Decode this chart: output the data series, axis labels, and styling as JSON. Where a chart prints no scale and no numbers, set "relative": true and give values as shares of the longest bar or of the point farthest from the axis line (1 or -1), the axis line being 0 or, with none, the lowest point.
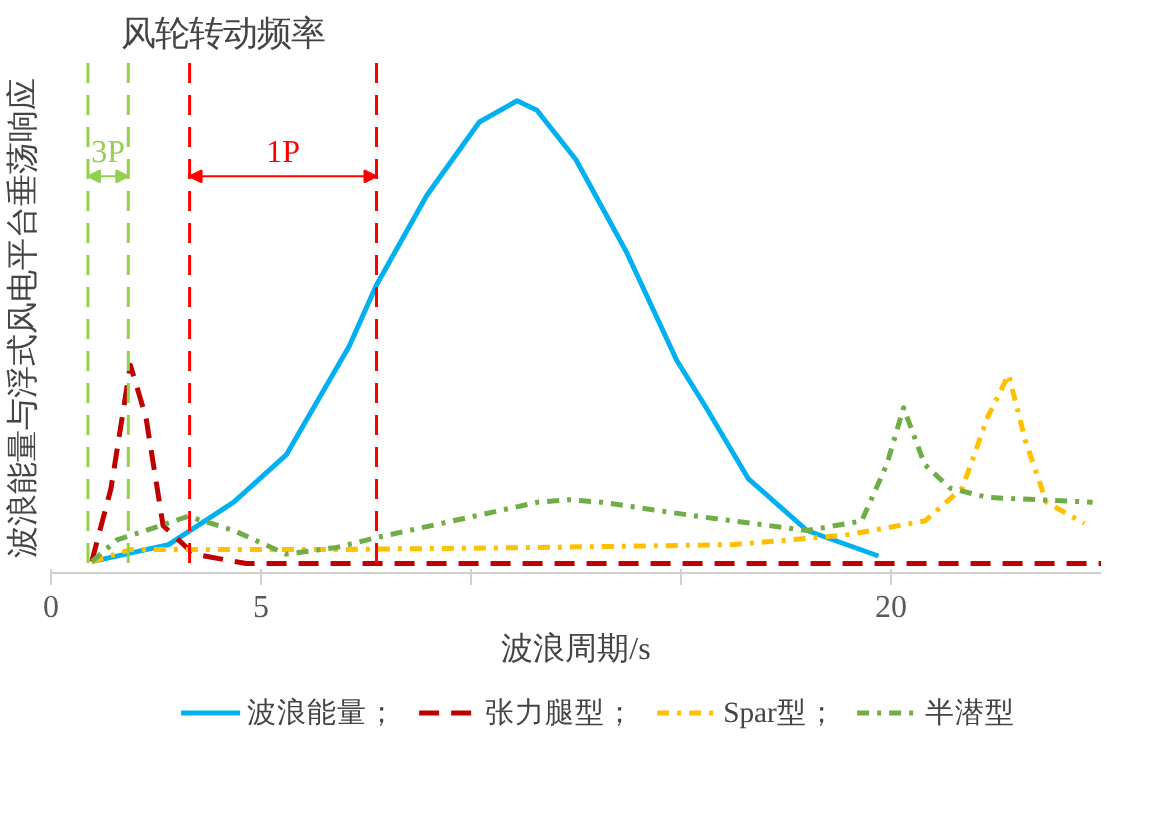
{
  "chart_data": {
    "type": "line",
    "title": "风轮转动频率",
    "xlabel": "波浪周期/s",
    "ylabel": "波浪能量与浮式风电平台垂荡响应",
    "relative": true,
    "xlim": [
      0,
      25
    ],
    "xticks": [
      0,
      5,
      {
        "value": 10,
        "label": null
      },
      {
        "value": 15,
        "label": null
      },
      20
    ],
    "grid": false,
    "legend": "bottom",
    "series": [
      {
        "name": "波浪能量；",
        "color": "#00b0f0",
        "line_style": "solid",
        "x": [
          0.97,
          2.8,
          4.35,
          5.6,
          7.1,
          7.75,
          8.95,
          10.2,
          11.1,
          11.57,
          12.5,
          13.7,
          14.9,
          15.6,
          16.6,
          18.0,
          19.7
        ],
        "values": [
          0.024,
          0.06,
          0.15,
          0.25,
          0.48,
          0.61,
          0.8,
          0.955,
          1,
          0.98,
          0.875,
          0.68,
          0.45,
          0.35,
          0.2,
          0.09,
          0.036
        ]
      },
      {
        "name": "张力腿型；",
        "color": "#c00000",
        "line_style": "dashed",
        "x": [
          0.97,
          1.43,
          1.89,
          2.26,
          2.67,
          3.4,
          4.65,
          10,
          15,
          20,
          25
        ],
        "values": [
          0.024,
          0.18,
          0.44,
          0.33,
          0.1,
          0.04,
          0.02,
          0.02,
          0.02,
          0.02,
          0.02
        ]
      },
      {
        "name": "Spar型；",
        "color": "#ffc000",
        "line_style": "dashdot",
        "x": [
          0.97,
          1.9,
          3.3,
          7,
          11.6,
          16.2,
          18.9,
          20.8,
          21.7,
          22.3,
          22.8,
          23.2,
          23.7,
          24.6
        ],
        "values": [
          0.024,
          0.05,
          0.05,
          0.05,
          0.054,
          0.06,
          0.08,
          0.11,
          0.18,
          0.33,
          0.42,
          0.28,
          0.15,
          0.105
        ]
      },
      {
        "name": "半潜型",
        "color": "#70ad47",
        "line_style": "dashdot",
        "x": [
          0.97,
          1.57,
          3.27,
          4.35,
          5.6,
          6.8,
          7.75,
          11.6,
          12.3,
          13.1,
          15.4,
          18.0,
          19.3,
          19.9,
          20.3,
          20.8,
          21.4,
          22.3,
          24.8
        ],
        "values": [
          0.024,
          0.07,
          0.12,
          0.09,
          0.04,
          0.054,
          0.075,
          0.15,
          0.155,
          0.15,
          0.12,
          0.09,
          0.11,
          0.23,
          0.35,
          0.23,
          0.18,
          0.16,
          0.15
        ]
      }
    ],
    "ref_lines": [
      {
        "axis": "x",
        "value": 0.88,
        "color": "#92d050",
        "line_style": "dashed"
      },
      {
        "axis": "x",
        "value": 1.84,
        "color": "#92d050",
        "line_style": "dashed"
      },
      {
        "axis": "x",
        "value": 3.3,
        "color": "#ff0000",
        "line_style": "dashed"
      },
      {
        "axis": "x",
        "value": 7.75,
        "color": "#ff0000",
        "line_style": "dashed"
      }
    ],
    "annotations": [
      "3P",
      "1P"
    ]
  }
}
